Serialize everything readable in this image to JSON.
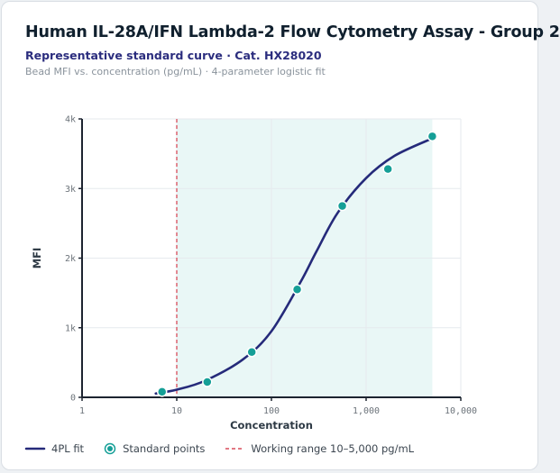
{
  "header": {
    "title": "Human IL-28A/IFN Lambda-2 Flow Cytometry Assay - Group 2",
    "subtitle": "Representative standard curve · Cat. HX28020",
    "caption": "Bead MFI vs. concentration (pg/mL) · 4-parameter logistic fit"
  },
  "legend": {
    "fit_label": "4PL fit",
    "points_label": "Standard points",
    "range_label": "Working range 10–5,000 pg/mL"
  },
  "colors": {
    "curve": "#252a7a",
    "points": "#159f97",
    "points_stroke": "#ffffff",
    "range_line": "#d94c5a",
    "range_fill": "#e9f7f6",
    "grid": "#e6eaee",
    "axis": "#1d2430"
  },
  "chart_data": {
    "type": "scatter",
    "title": "Human IL-28A/IFN Lambda-2 Flow Cytometry Assay - Group 2",
    "xlabel": "Concentration",
    "ylabel": "MFI",
    "x_scale": "log",
    "xlim": [
      1,
      10000
    ],
    "ylim": [
      0,
      4000
    ],
    "x_ticks": [
      1,
      10,
      100,
      1000,
      10000
    ],
    "x_tick_labels": [
      "1",
      "10",
      "100",
      "1,000",
      "10,000"
    ],
    "y_ticks": [
      0,
      1000,
      2000,
      3000,
      4000
    ],
    "y_tick_labels": [
      "0",
      "1k",
      "2k",
      "3k",
      "4k"
    ],
    "grid": true,
    "legend_position": "bottom",
    "working_range": [
      10,
      5000
    ],
    "series": [
      {
        "name": "Standard points",
        "type": "scatter",
        "x": [
          7,
          21,
          62,
          187,
          560,
          1700,
          5000
        ],
        "y": [
          80,
          220,
          650,
          1550,
          2750,
          3280,
          3750
        ]
      },
      {
        "name": "4PL fit",
        "type": "line",
        "x": [
          6,
          10,
          20,
          50,
          100,
          200,
          300,
          500,
          1000,
          2000,
          5000
        ],
        "y": [
          55,
          110,
          240,
          545,
          950,
          1640,
          2100,
          2650,
          3150,
          3470,
          3720
        ]
      }
    ]
  }
}
